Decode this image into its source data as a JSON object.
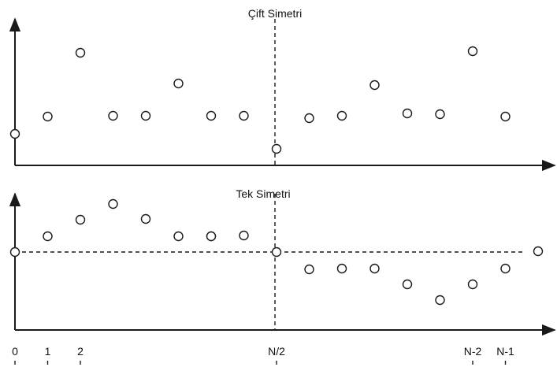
{
  "chart_data": [
    {
      "type": "scatter",
      "title": "Çift Simetri",
      "points": [
        {
          "n": 0,
          "y": 40
        },
        {
          "n": 1,
          "y": 62
        },
        {
          "n": 2,
          "y": 143
        },
        {
          "n": 3,
          "y": 63
        },
        {
          "n": 4,
          "y": 63
        },
        {
          "n": 5,
          "y": 104
        },
        {
          "n": 6,
          "y": 63
        },
        {
          "n": 7,
          "y": 63
        },
        {
          "n": 8,
          "y": 21
        },
        {
          "n": 9,
          "y": 60
        },
        {
          "n": 10,
          "y": 63
        },
        {
          "n": 11,
          "y": 102
        },
        {
          "n": 12,
          "y": 66
        },
        {
          "n": 13,
          "y": 65
        },
        {
          "n": 14,
          "y": 145
        },
        {
          "n": 15,
          "y": 62
        }
      ]
    },
    {
      "type": "scatter",
      "title": "Tek Simetri",
      "points": [
        {
          "n": 0,
          "y": 0
        },
        {
          "n": 1,
          "y": 20
        },
        {
          "n": 2,
          "y": 41
        },
        {
          "n": 3,
          "y": 61
        },
        {
          "n": 4,
          "y": 42
        },
        {
          "n": 5,
          "y": 20
        },
        {
          "n": 6,
          "y": 20
        },
        {
          "n": 6,
          "y": 20
        },
        {
          "n": 7,
          "y": 21
        },
        {
          "n": 8,
          "y": 0
        },
        {
          "n": 9,
          "y": -22
        },
        {
          "n": 10,
          "y": -21
        },
        {
          "n": 11,
          "y": -21
        },
        {
          "n": 12,
          "y": -41
        },
        {
          "n": 13,
          "y": -61
        },
        {
          "n": 14,
          "y": -41
        },
        {
          "n": 15,
          "y": -21
        },
        {
          "n": 16,
          "y": 1
        }
      ]
    }
  ],
  "x_ticks": [
    {
      "n": 0,
      "label": "0"
    },
    {
      "n": 1,
      "label": "1"
    },
    {
      "n": 2,
      "label": "2"
    },
    {
      "n": 8,
      "label": "N/2"
    },
    {
      "n": 14,
      "label": "N-2"
    },
    {
      "n": 15,
      "label": "N-1"
    }
  ]
}
